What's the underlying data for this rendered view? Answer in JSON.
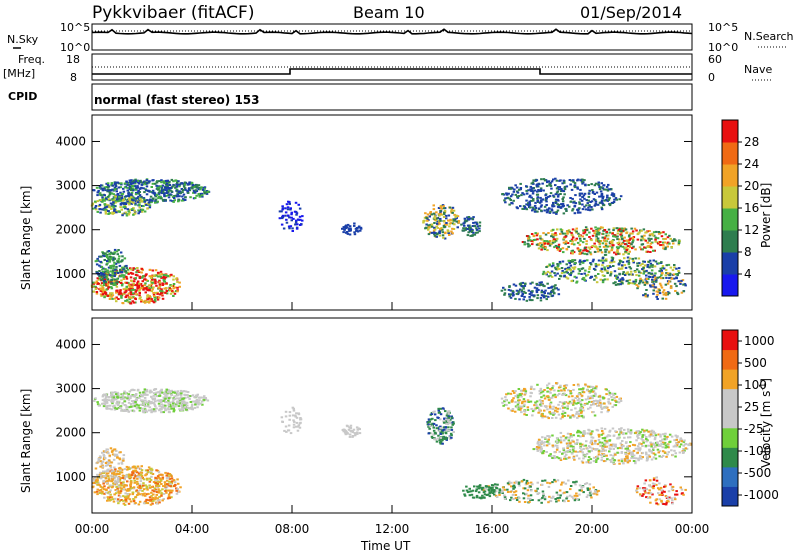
{
  "header": {
    "title": "Pykkvibaer (fitACF)",
    "beam": "Beam 10",
    "date": "01/Sep/2014"
  },
  "status_panel": {
    "nsky_label": "N.Sky",
    "nsky_ticks": [
      "10^5",
      "10^0"
    ],
    "nsearch_label": "N.Search",
    "nsearch_ticks": [
      "10^5",
      "10^0"
    ],
    "freq_label": "Freq.",
    "freq_unit": "[MHz]",
    "freq_ticks": [
      "18",
      "8"
    ],
    "nave_label": "Nave",
    "nave_ticks": [
      "60",
      "0"
    ],
    "cpid_label": "CPID",
    "cpid_text": "normal (fast stereo) 153"
  },
  "chart_data": [
    {
      "type": "heatmap",
      "panel": "power",
      "ylabel": "Slant Range [km]",
      "yticks": [
        1000,
        2000,
        3000,
        4000
      ],
      "ylim": [
        180,
        4600
      ],
      "xlim": [
        0,
        24
      ],
      "colorbar_label": "Power [dB]",
      "colorbar_ticks": [
        4,
        8,
        12,
        16,
        20,
        24,
        28
      ],
      "colorbar_colors": [
        "#1818ee",
        "#1a3fa8",
        "#2e7d4f",
        "#46b044",
        "#c8c83a",
        "#f1a326",
        "#f06a14",
        "#e81010"
      ]
    },
    {
      "type": "heatmap",
      "panel": "velocity",
      "ylabel": "Slant Range [km]",
      "yticks": [
        1000,
        2000,
        3000,
        4000
      ],
      "ylim": [
        180,
        4600
      ],
      "xlim": [
        0,
        24
      ],
      "xlabel": "Time UT",
      "xticks": [
        "00:00",
        "04:00",
        "08:00",
        "12:00",
        "16:00",
        "20:00",
        "00:00"
      ],
      "colorbar_label": "Velocity [m s",
      "colorbar_label_sup": "-1",
      "colorbar_label_end": "]",
      "colorbar_ticks": [
        "1000",
        "500",
        "100",
        "25",
        "-25",
        "-100",
        "-500",
        "-1000"
      ],
      "colorbar_colors": [
        "#1a3fa8",
        "#2e6fbf",
        "#2f8a4a",
        "#6fcf3a",
        "#c8c8c8",
        "#c8c8c8",
        "#f1a326",
        "#f06a14",
        "#e81010"
      ]
    }
  ]
}
